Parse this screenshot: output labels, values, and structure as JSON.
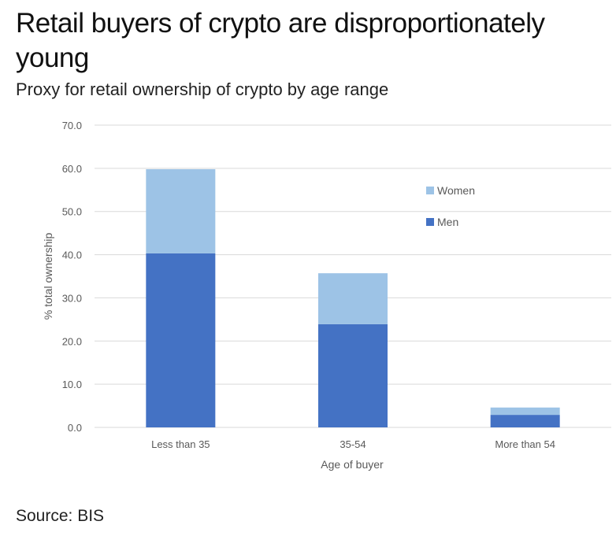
{
  "header": {
    "title": "Retail buyers of crypto are disproportionately young",
    "subtitle": "Proxy for retail ownership of crypto by age range"
  },
  "footer": {
    "source": "Source: BIS"
  },
  "chart_data": {
    "type": "bar",
    "stacked": true,
    "title": "",
    "xlabel": "Age of buyer",
    "ylabel": "% total ownership",
    "categories": [
      "Less than 35",
      "35-54",
      "More than 54"
    ],
    "series": [
      {
        "name": "Men",
        "values": [
          40.3,
          23.9,
          2.9
        ],
        "color": "#4472c4"
      },
      {
        "name": "Women",
        "values": [
          19.5,
          11.8,
          1.7
        ],
        "color": "#9dc3e6"
      }
    ],
    "ylim": [
      0,
      70
    ],
    "yticks": [
      "0.0",
      "10.0",
      "20.0",
      "30.0",
      "40.0",
      "50.0",
      "60.0",
      "70.0"
    ],
    "ytick_values": [
      0,
      10,
      20,
      30,
      40,
      50,
      60,
      70
    ],
    "grid": true,
    "legend": {
      "placement": "right",
      "entries": [
        "Women",
        "Men"
      ]
    }
  }
}
